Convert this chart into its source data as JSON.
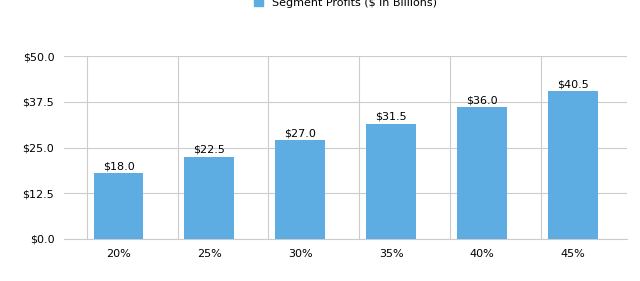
{
  "categories": [
    "20%",
    "25%",
    "30%",
    "35%",
    "40%",
    "45%"
  ],
  "values": [
    18.0,
    22.5,
    27.0,
    31.5,
    36.0,
    40.5
  ],
  "bar_color": "#5DADE2",
  "bar_labels": [
    "$18.0",
    "$22.5",
    "$27.0",
    "$31.5",
    "$36.0",
    "$40.5"
  ],
  "legend_label": "Segment Profits ($ in Billions)",
  "ylim": [
    0,
    50
  ],
  "yticks": [
    0,
    12.5,
    25.0,
    37.5,
    50.0
  ],
  "ytick_labels": [
    "$0.0",
    "$12.5",
    "$25.0",
    "$37.5",
    "$50.0"
  ],
  "background_color": "#ffffff",
  "grid_color": "#cccccc",
  "bar_label_fontsize": 8,
  "tick_fontsize": 8,
  "legend_fontsize": 8,
  "bar_width": 0.55
}
